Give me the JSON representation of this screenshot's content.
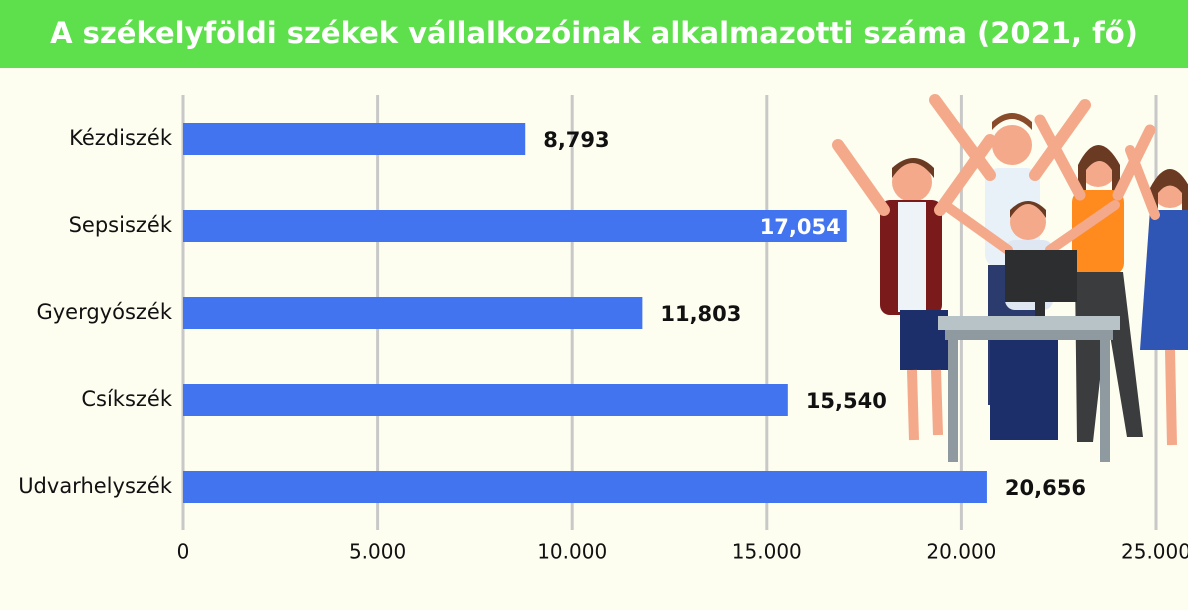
{
  "chart_data": {
    "type": "bar",
    "orientation": "horizontal",
    "title": "A székelyföldi székek vállalkozóinak alkalmazotti száma (2021, fő)",
    "categories": [
      "Kézdiszék",
      "Sepsiszék",
      "Gyergyószék",
      "Csíkszék",
      "Udvarhelyszék"
    ],
    "values": [
      8793,
      17054,
      11803,
      15540,
      20656
    ],
    "value_labels": [
      "8,793",
      "17,054",
      "11,803",
      "15,540",
      "20,656"
    ],
    "value_label_position": [
      "outside",
      "inside",
      "outside",
      "outside",
      "outside"
    ],
    "color": "#4274f0",
    "xlim": [
      0,
      25000
    ],
    "xticks": [
      0,
      {
        "value": 5000,
        "label": "5.000"
      },
      {
        "value": 10000,
        "label": "10.000"
      },
      {
        "value": 15000,
        "label": "15.000"
      },
      {
        "value": 20000,
        "label": "20.000"
      },
      {
        "value": 25000,
        "label": "25.000"
      }
    ],
    "grid": true
  }
}
